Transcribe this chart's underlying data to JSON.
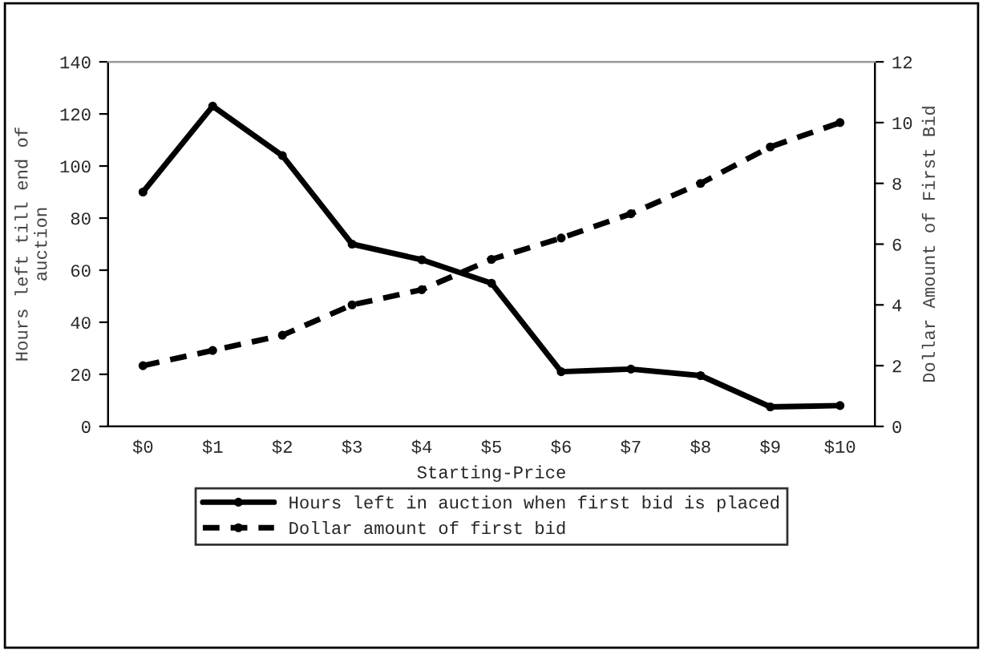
{
  "chart_data": {
    "type": "line",
    "xlabel": "Starting-Price",
    "ylabel": "Hours left till end of\nauction",
    "y2label": "Dollar Amount of First Bid",
    "categories": [
      "$0",
      "$1",
      "$2",
      "$3",
      "$4",
      "$5",
      "$6",
      "$7",
      "$8",
      "$9",
      "$10"
    ],
    "series": [
      {
        "name": "Hours left in auction when first bid is placed",
        "color": "#000000",
        "line_style": "solid",
        "values": [
          90,
          123,
          104,
          70,
          64,
          55,
          21,
          22,
          19.5,
          7.5,
          8
        ]
      },
      {
        "name": "Dollar amount of first bid",
        "color": "#000000",
        "line_style": "dashed",
        "axis": "y2",
        "values": [
          2,
          2.5,
          3,
          4,
          4.5,
          5.5,
          6.2,
          7,
          8,
          9.2,
          10
        ]
      }
    ],
    "ylim": [
      0,
      140
    ],
    "yticks": [
      0,
      20,
      40,
      60,
      80,
      100,
      120,
      140
    ],
    "y2lim": [
      0,
      12
    ],
    "y2ticks": [
      0,
      2,
      4,
      6,
      8,
      10,
      12
    ],
    "marker": "circle",
    "grid": false,
    "legend": "bottom"
  }
}
